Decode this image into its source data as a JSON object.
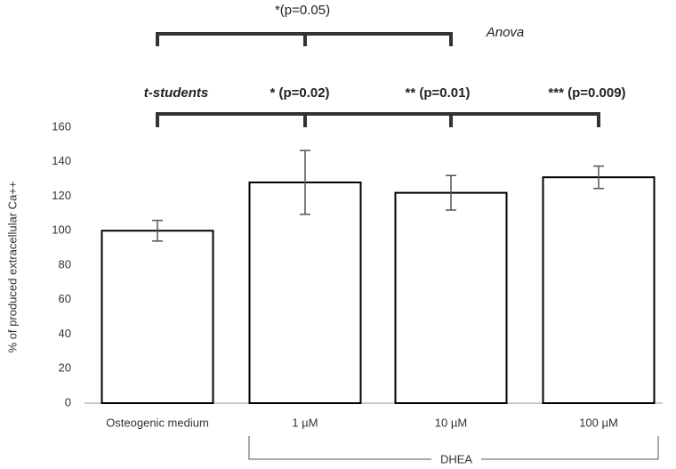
{
  "chart_data": {
    "type": "bar",
    "y_label": "% of produced extracellular Ca++",
    "categories": [
      "Osteogenic medium",
      "1 µM",
      "10 µM",
      "100 µM"
    ],
    "values": [
      100,
      128,
      122,
      131
    ],
    "errors": [
      6,
      18.5,
      10,
      6.5
    ],
    "color": "#ffffff",
    "ylim": [
      0,
      160
    ],
    "yticks": [
      0,
      20,
      40,
      60,
      80,
      100,
      120,
      140,
      160
    ],
    "grid": false,
    "anova": {
      "label": "*(p=0.05)",
      "test": "Anova"
    },
    "t_test": {
      "test": "t-students",
      "labels": [
        "* (p=0.02)",
        "** (p=0.01)",
        "*** (p=0.009)"
      ]
    },
    "group_label": "DHEA"
  }
}
